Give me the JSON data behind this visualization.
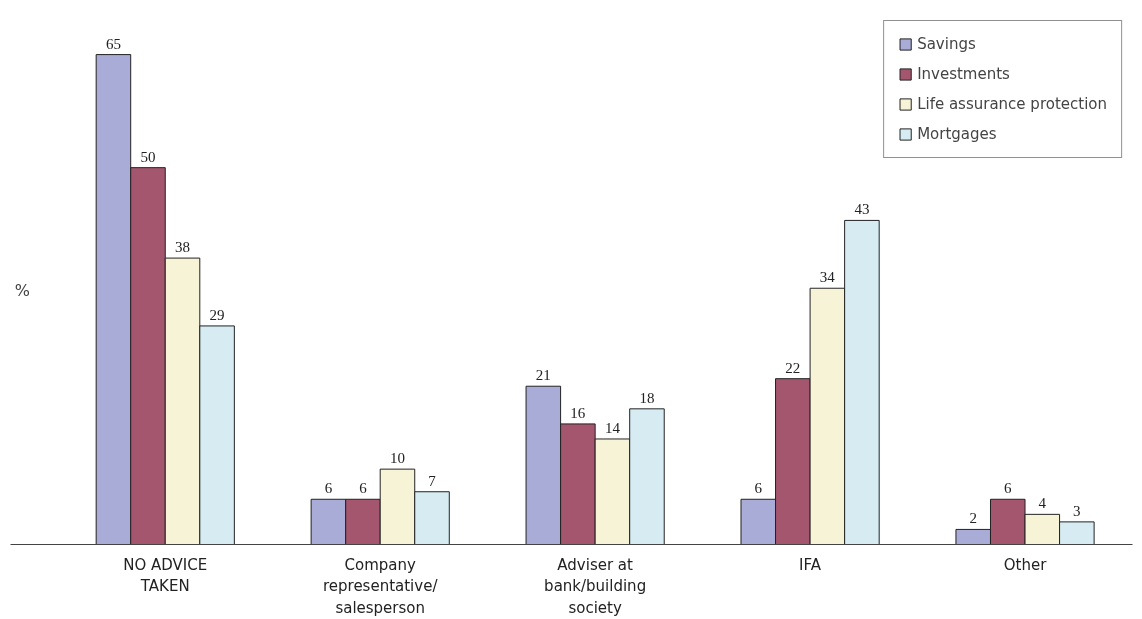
{
  "chart_data": {
    "type": "bar",
    "ylabel": "%",
    "categories": [
      "NO ADVICE TAKEN",
      "Company representative/ salesperson",
      "Adviser at bank/building society",
      "IFA",
      "Other"
    ],
    "series": [
      {
        "name": "Savings",
        "color": "#a9acd6",
        "values": [
          65,
          6,
          21,
          6,
          2
        ]
      },
      {
        "name": "Investments",
        "color": "#a5566f",
        "values": [
          50,
          6,
          16,
          22,
          6
        ]
      },
      {
        "name": "Life assurance protection",
        "color": "#f7f3d6",
        "values": [
          38,
          10,
          14,
          34,
          4
        ]
      },
      {
        "name": "Mortgages",
        "color": "#d6ecf2",
        "values": [
          29,
          7,
          18,
          43,
          3
        ]
      }
    ],
    "data_labels": true,
    "legend": "top right",
    "grid": false
  }
}
